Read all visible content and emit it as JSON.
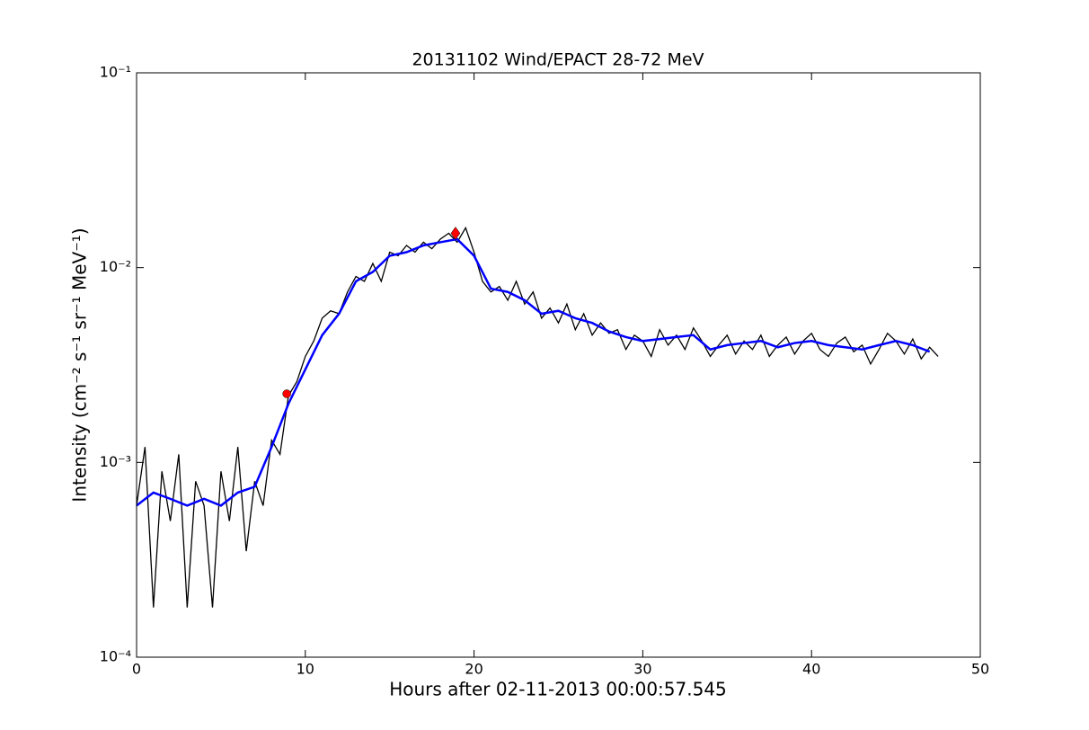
{
  "chart_data": {
    "type": "line",
    "title": "20131102 Wind/EPACT 28-72 MeV",
    "x_label": "Hours after 02-11-2013 00:00:57.545",
    "y_label": "Intensity (cm⁻² s⁻¹ sr⁻¹ MeV⁻¹)",
    "log_y": true,
    "xlim": [
      0,
      50
    ],
    "xticks": [
      0,
      10,
      20,
      30,
      40,
      50
    ],
    "ylim": [
      0.0001,
      0.1
    ],
    "yticks": [
      {
        "value": 0.0001,
        "label": "10⁻⁴"
      },
      {
        "value": 0.001,
        "label": "10⁻³"
      },
      {
        "value": 0.01,
        "label": "10⁻²"
      },
      {
        "value": 0.1,
        "label": "10⁻¹"
      }
    ],
    "series": [
      {
        "color": "#000000",
        "x": [
          0,
          0.5,
          1,
          1.5,
          2,
          2.5,
          3,
          3.5,
          4,
          4.5,
          5,
          5.5,
          6,
          6.5,
          7,
          7.5,
          8,
          8.5,
          9,
          9.5,
          10,
          10.5,
          11,
          11.5,
          12,
          12.5,
          13,
          13.5,
          14,
          14.5,
          15,
          15.5,
          16,
          16.5,
          17,
          17.5,
          18,
          18.5,
          19,
          19.5,
          20,
          20.5,
          21,
          21.5,
          22,
          22.5,
          23,
          23.5,
          24,
          24.5,
          25,
          25.5,
          26,
          26.5,
          27,
          27.5,
          28,
          28.5,
          29,
          29.5,
          30,
          30.5,
          31,
          31.5,
          32,
          32.5,
          33,
          33.5,
          34,
          34.5,
          35,
          35.5,
          36,
          36.5,
          37,
          37.5,
          38,
          38.5,
          39,
          39.5,
          40,
          40.5,
          41,
          41.5,
          42,
          42.5,
          43,
          43.5,
          44,
          44.5,
          45,
          45.5,
          46,
          46.5,
          47,
          47.5
        ],
        "values": [
          0.0006,
          0.0012,
          0.00018,
          0.0009,
          0.0005,
          0.0011,
          0.00018,
          0.0008,
          0.0006,
          0.00018,
          0.0009,
          0.0005,
          0.0012,
          0.00035,
          0.0008,
          0.0006,
          0.0013,
          0.0011,
          0.0022,
          0.0026,
          0.0035,
          0.0042,
          0.0055,
          0.006,
          0.0058,
          0.0075,
          0.009,
          0.0085,
          0.0105,
          0.0085,
          0.012,
          0.0115,
          0.013,
          0.012,
          0.0135,
          0.0125,
          0.014,
          0.015,
          0.0135,
          0.016,
          0.012,
          0.0085,
          0.0075,
          0.008,
          0.0068,
          0.0085,
          0.0065,
          0.0075,
          0.0055,
          0.0062,
          0.0052,
          0.0065,
          0.0048,
          0.0058,
          0.0045,
          0.0052,
          0.0046,
          0.0048,
          0.0038,
          0.0045,
          0.0042,
          0.0035,
          0.0048,
          0.004,
          0.0045,
          0.0038,
          0.0049,
          0.0042,
          0.0035,
          0.004,
          0.0045,
          0.0036,
          0.0042,
          0.0038,
          0.0045,
          0.0035,
          0.004,
          0.0044,
          0.0036,
          0.0042,
          0.0046,
          0.0038,
          0.0035,
          0.0041,
          0.0044,
          0.0037,
          0.004,
          0.0032,
          0.0038,
          0.0046,
          0.0042,
          0.0036,
          0.0043,
          0.0034,
          0.0039,
          0.0035
        ]
      },
      {
        "color": "#0000ff",
        "x": [
          0,
          1,
          2,
          3,
          4,
          5,
          6,
          7,
          8,
          9,
          10,
          11,
          12,
          13,
          14,
          15,
          16,
          17,
          18,
          19,
          20,
          21,
          22,
          23,
          24,
          25,
          26,
          27,
          28,
          29,
          30,
          31,
          32,
          33,
          34,
          35,
          36,
          37,
          38,
          39,
          40,
          41,
          42,
          43,
          44,
          45,
          46,
          47
        ],
        "values": [
          0.0006,
          0.0007,
          0.00065,
          0.0006,
          0.00065,
          0.0006,
          0.0007,
          0.00075,
          0.0012,
          0.002,
          0.003,
          0.0045,
          0.0058,
          0.0085,
          0.0095,
          0.0115,
          0.012,
          0.013,
          0.0135,
          0.014,
          0.0115,
          0.0078,
          0.0075,
          0.0068,
          0.0058,
          0.006,
          0.0055,
          0.0052,
          0.0047,
          0.0044,
          0.0042,
          0.0043,
          0.0044,
          0.0045,
          0.0038,
          0.004,
          0.0041,
          0.0042,
          0.0039,
          0.0041,
          0.0042,
          0.004,
          0.0039,
          0.0038,
          0.004,
          0.0042,
          0.004,
          0.0037
        ]
      }
    ],
    "markers": [
      {
        "shape": "circle",
        "color": "#ff0000",
        "x": 8.9,
        "y": 0.00225
      },
      {
        "shape": "diamond",
        "color": "#ff0000",
        "x": 18.9,
        "y": 0.015
      }
    ]
  }
}
